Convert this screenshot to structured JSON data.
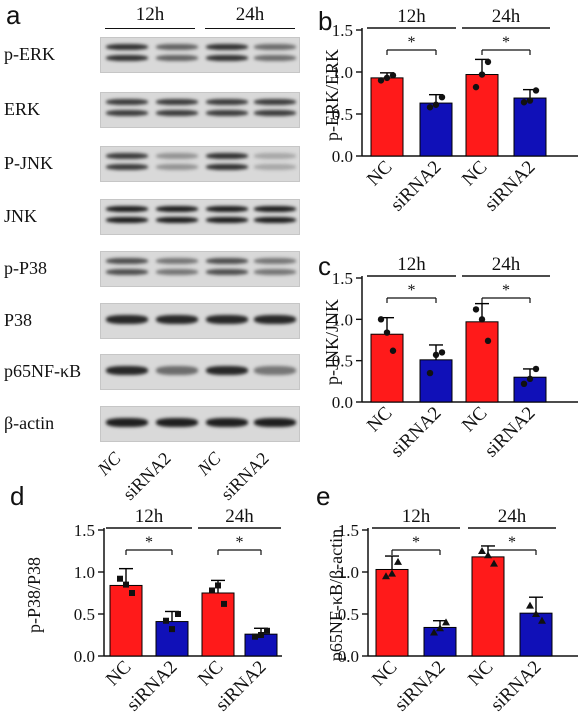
{
  "blots": {
    "panel_letter": "a",
    "timepoints": [
      "12h",
      "24h"
    ],
    "lane_labels": [
      "NC",
      "siRNA2",
      "NC",
      "siRNA2"
    ],
    "rows": [
      {
        "label": "p-ERK",
        "intensity": [
          0.85,
          0.6,
          0.85,
          0.55
        ],
        "double": true
      },
      {
        "label": "ERK",
        "intensity": [
          0.8,
          0.8,
          0.8,
          0.8
        ],
        "double": true
      },
      {
        "label": "P-JNK",
        "intensity": [
          0.8,
          0.35,
          0.85,
          0.25
        ],
        "double": true
      },
      {
        "label": "JNK",
        "intensity": [
          0.95,
          0.95,
          0.95,
          0.95
        ],
        "double": true
      },
      {
        "label": "p-P38",
        "intensity": [
          0.7,
          0.5,
          0.7,
          0.5
        ],
        "double": true
      },
      {
        "label": "P38",
        "intensity": [
          0.9,
          0.9,
          0.9,
          0.9
        ],
        "double": false
      },
      {
        "label": "p65NF-κB",
        "intensity": [
          0.9,
          0.55,
          0.9,
          0.5
        ],
        "double": false
      },
      {
        "label": "β-actin",
        "intensity": [
          0.95,
          0.95,
          0.95,
          0.95
        ],
        "double": false
      }
    ]
  },
  "colors": {
    "nc": "#ff1a1a",
    "sirna": "#1010b8",
    "axis": "#111111",
    "blot_bg": "#d9d9d9",
    "band": "#1a1a1a"
  },
  "chart_data": [
    {
      "panel": "b",
      "type": "bar",
      "ylabel": "p-ERK/ERK",
      "ylim": [
        0,
        1.5
      ],
      "yticks": [
        "0.0",
        "0.5",
        "1.0",
        "1.5"
      ],
      "groups": [
        "12h",
        "24h"
      ],
      "categories": [
        "NC",
        "siRNA2",
        "NC",
        "siRNA2"
      ],
      "values": [
        0.93,
        0.63,
        0.97,
        0.69
      ],
      "errors": [
        0.06,
        0.1,
        0.18,
        0.1
      ],
      "points": [
        [
          0.9,
          0.96,
          0.93
        ],
        [
          0.58,
          0.7,
          0.61
        ],
        [
          0.82,
          1.12,
          0.97
        ],
        [
          0.64,
          0.78,
          0.66
        ]
      ],
      "marker": "circle",
      "significance": [
        "*",
        "*"
      ]
    },
    {
      "panel": "c",
      "type": "bar",
      "ylabel": "p-JNK/JNK",
      "ylim": [
        0,
        1.5
      ],
      "yticks": [
        "0.0",
        "0.5",
        "1.0",
        "1.5"
      ],
      "groups": [
        "12h",
        "24h"
      ],
      "categories": [
        "NC",
        "siRNA2",
        "NC",
        "siRNA2"
      ],
      "values": [
        0.82,
        0.51,
        0.97,
        0.3
      ],
      "errors": [
        0.2,
        0.18,
        0.22,
        0.1
      ],
      "points": [
        [
          1.0,
          0.62,
          0.84
        ],
        [
          0.35,
          0.6,
          0.57
        ],
        [
          1.12,
          0.74,
          1.0
        ],
        [
          0.22,
          0.4,
          0.28
        ]
      ],
      "marker": "circle",
      "significance": [
        "*",
        "*"
      ]
    },
    {
      "panel": "d",
      "type": "bar",
      "ylabel": "p-P38/P38",
      "ylim": [
        0,
        1.5
      ],
      "yticks": [
        "0.0",
        "0.5",
        "1.0",
        "1.5"
      ],
      "groups": [
        "12h",
        "24h"
      ],
      "categories": [
        "NC",
        "siRNA2",
        "NC",
        "siRNA2"
      ],
      "values": [
        0.84,
        0.41,
        0.75,
        0.26
      ],
      "errors": [
        0.2,
        0.12,
        0.15,
        0.07
      ],
      "points": [
        [
          0.92,
          0.75,
          0.85
        ],
        [
          0.42,
          0.5,
          0.32
        ],
        [
          0.78,
          0.62,
          0.84
        ],
        [
          0.23,
          0.3,
          0.25
        ]
      ],
      "marker": "square",
      "significance": [
        "*",
        "*"
      ]
    },
    {
      "panel": "e",
      "type": "bar",
      "ylabel": "p65NF-κB/β-actin",
      "ylim": [
        0,
        1.5
      ],
      "yticks": [
        "0.0",
        "0.5",
        "1.0",
        "1.5"
      ],
      "groups": [
        "12h",
        "24h"
      ],
      "categories": [
        "NC",
        "siRNA2",
        "NC",
        "siRNA2"
      ],
      "values": [
        1.03,
        0.34,
        1.18,
        0.51
      ],
      "errors": [
        0.16,
        0.08,
        0.13,
        0.19
      ],
      "points": [
        [
          0.95,
          1.12,
          0.98
        ],
        [
          0.28,
          0.4,
          0.33
        ],
        [
          1.25,
          1.1,
          1.2
        ],
        [
          0.6,
          0.42,
          0.5
        ]
      ],
      "marker": "triangle",
      "significance": [
        "*",
        "*"
      ]
    }
  ]
}
